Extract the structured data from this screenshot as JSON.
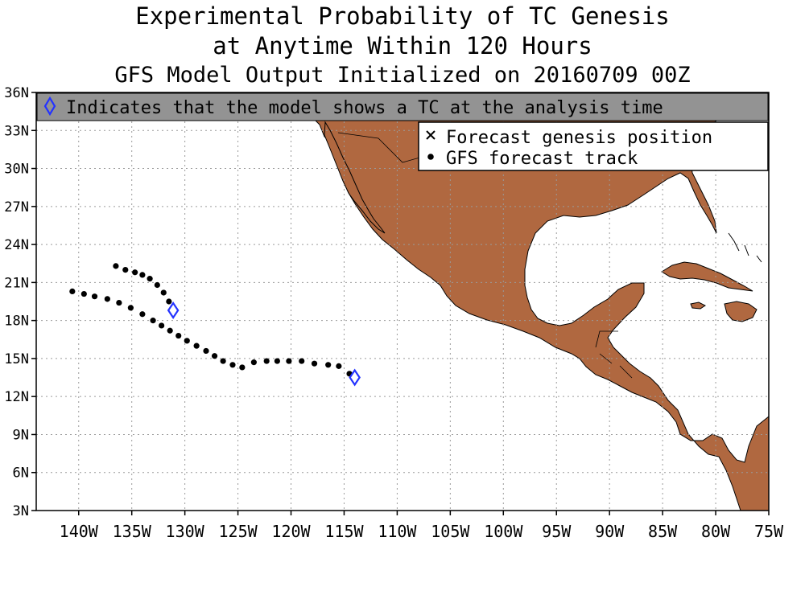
{
  "title": {
    "line1": "Experimental Probability of TC Genesis",
    "line2": "at Anytime Within 120 Hours",
    "line3": "GFS Model Output Initialized on 20160709 00Z"
  },
  "banner": {
    "text": "Indicates that the model shows a TC at the analysis time"
  },
  "legend": {
    "genesis": "Forecast genesis position",
    "track": "GFS forecast track"
  },
  "colors": {
    "land": "#b06840",
    "ocean": "#ffffff",
    "banner_bg": "#939393",
    "analysis_marker": "#2433ff",
    "footer": "#1a8a1a",
    "grid": "#9a9a9a"
  },
  "map_data": {
    "lon_range": [
      -144,
      -75
    ],
    "lat_range": [
      3,
      36
    ],
    "lon_ticks": [
      -140,
      -135,
      -130,
      -125,
      -120,
      -115,
      -110,
      -105,
      -100,
      -95,
      -90,
      -85,
      -80,
      -75
    ],
    "lon_tick_labels": [
      "140W",
      "135W",
      "130W",
      "125W",
      "120W",
      "115W",
      "110W",
      "105W",
      "100W",
      "95W",
      "90W",
      "85W",
      "80W",
      "75W"
    ],
    "lat_ticks": [
      3,
      6,
      9,
      12,
      15,
      18,
      21,
      24,
      27,
      30,
      33,
      36
    ],
    "lat_tick_labels": [
      "3N",
      "6N",
      "9N",
      "12N",
      "15N",
      "18N",
      "21N",
      "24N",
      "27N",
      "30N",
      "33N",
      "36N"
    ],
    "tracks": [
      {
        "name": "track-1",
        "analysis": [
          -114.0,
          13.5
        ],
        "points": [
          [
            -114.5,
            13.8
          ],
          [
            -115.5,
            14.4
          ],
          [
            -116.5,
            14.5
          ],
          [
            -117.8,
            14.6
          ],
          [
            -119.0,
            14.8
          ],
          [
            -120.2,
            14.8
          ],
          [
            -121.3,
            14.8
          ],
          [
            -122.3,
            14.8
          ],
          [
            -123.5,
            14.7
          ],
          [
            -124.6,
            14.3
          ],
          [
            -125.5,
            14.5
          ],
          [
            -126.4,
            14.8
          ],
          [
            -127.2,
            15.2
          ],
          [
            -128.0,
            15.6
          ],
          [
            -128.9,
            16.0
          ],
          [
            -129.8,
            16.4
          ],
          [
            -130.6,
            16.8
          ],
          [
            -131.4,
            17.2
          ],
          [
            -132.2,
            17.6
          ],
          [
            -133.0,
            18.0
          ],
          [
            -134.0,
            18.5
          ],
          [
            -135.1,
            19.0
          ],
          [
            -136.2,
            19.4
          ],
          [
            -137.3,
            19.7
          ],
          [
            -138.5,
            19.9
          ],
          [
            -139.5,
            20.1
          ],
          [
            -140.6,
            20.3
          ]
        ]
      },
      {
        "name": "track-2",
        "analysis": [
          -131.1,
          18.8
        ],
        "points": [
          [
            -131.5,
            19.5
          ],
          [
            -132.0,
            20.2
          ],
          [
            -132.6,
            20.8
          ],
          [
            -133.3,
            21.3
          ],
          [
            -134.0,
            21.6
          ],
          [
            -134.7,
            21.8
          ],
          [
            -135.6,
            22.0
          ],
          [
            -136.5,
            22.3
          ]
        ]
      }
    ]
  }
}
